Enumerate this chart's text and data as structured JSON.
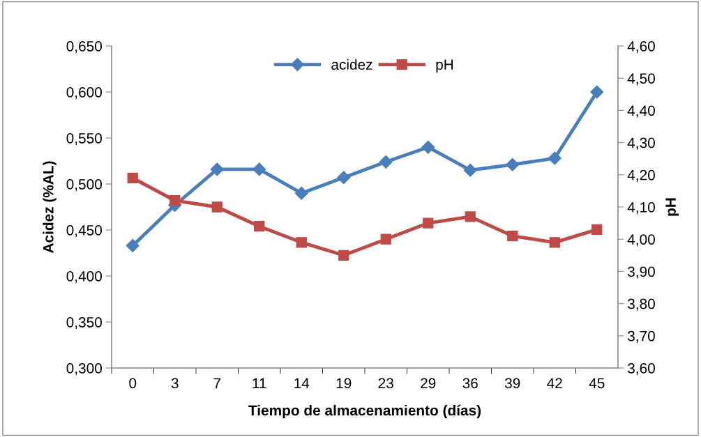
{
  "chart_data": {
    "type": "line",
    "xlabel": "Tiempo de almacenamiento (días)",
    "ylabel": "Acidez (%AL)",
    "y2label": "pH",
    "categories": [
      "0",
      "3",
      "7",
      "11",
      "14",
      "19",
      "23",
      "29",
      "36",
      "39",
      "42",
      "45"
    ],
    "series": [
      {
        "name": "acidez",
        "color": "#4a7ebb",
        "marker": "diamond",
        "values": [
          0.433,
          0.477,
          0.516,
          0.516,
          0.49,
          0.507,
          0.524,
          0.54,
          0.515,
          0.521,
          0.528,
          0.6
        ]
      },
      {
        "name": "pH",
        "color": "#be4b48",
        "marker": "square",
        "axis": "y2",
        "values": [
          4.19,
          4.12,
          4.1,
          4.04,
          3.99,
          3.95,
          4.0,
          4.05,
          4.07,
          4.01,
          3.99,
          4.03
        ]
      }
    ],
    "ylim": [
      0.3,
      0.65
    ],
    "yticks": [
      {
        "value": 0.3,
        "label": "0,300"
      },
      {
        "value": 0.35,
        "label": "0,350"
      },
      {
        "value": 0.4,
        "label": "0,400"
      },
      {
        "value": 0.45,
        "label": "0,450"
      },
      {
        "value": 0.5,
        "label": "0,500"
      },
      {
        "value": 0.55,
        "label": "0,550"
      },
      {
        "value": 0.6,
        "label": "0,600"
      },
      {
        "value": 0.65,
        "label": "0,650"
      }
    ],
    "y2lim": [
      3.6,
      4.6
    ],
    "y2ticks": [
      {
        "value": 3.6,
        "label": "3,60"
      },
      {
        "value": 3.7,
        "label": "3,70"
      },
      {
        "value": 3.8,
        "label": "3,80"
      },
      {
        "value": 3.9,
        "label": "3,90"
      },
      {
        "value": 4.0,
        "label": "4,00"
      },
      {
        "value": 4.1,
        "label": "4,10"
      },
      {
        "value": 4.2,
        "label": "4,20"
      },
      {
        "value": 4.3,
        "label": "4,30"
      },
      {
        "value": 4.4,
        "label": "4,40"
      },
      {
        "value": 4.5,
        "label": "4,50"
      },
      {
        "value": 4.6,
        "label": "4,60"
      }
    ],
    "grid": false,
    "legend": "top",
    "line_style": "solid"
  }
}
